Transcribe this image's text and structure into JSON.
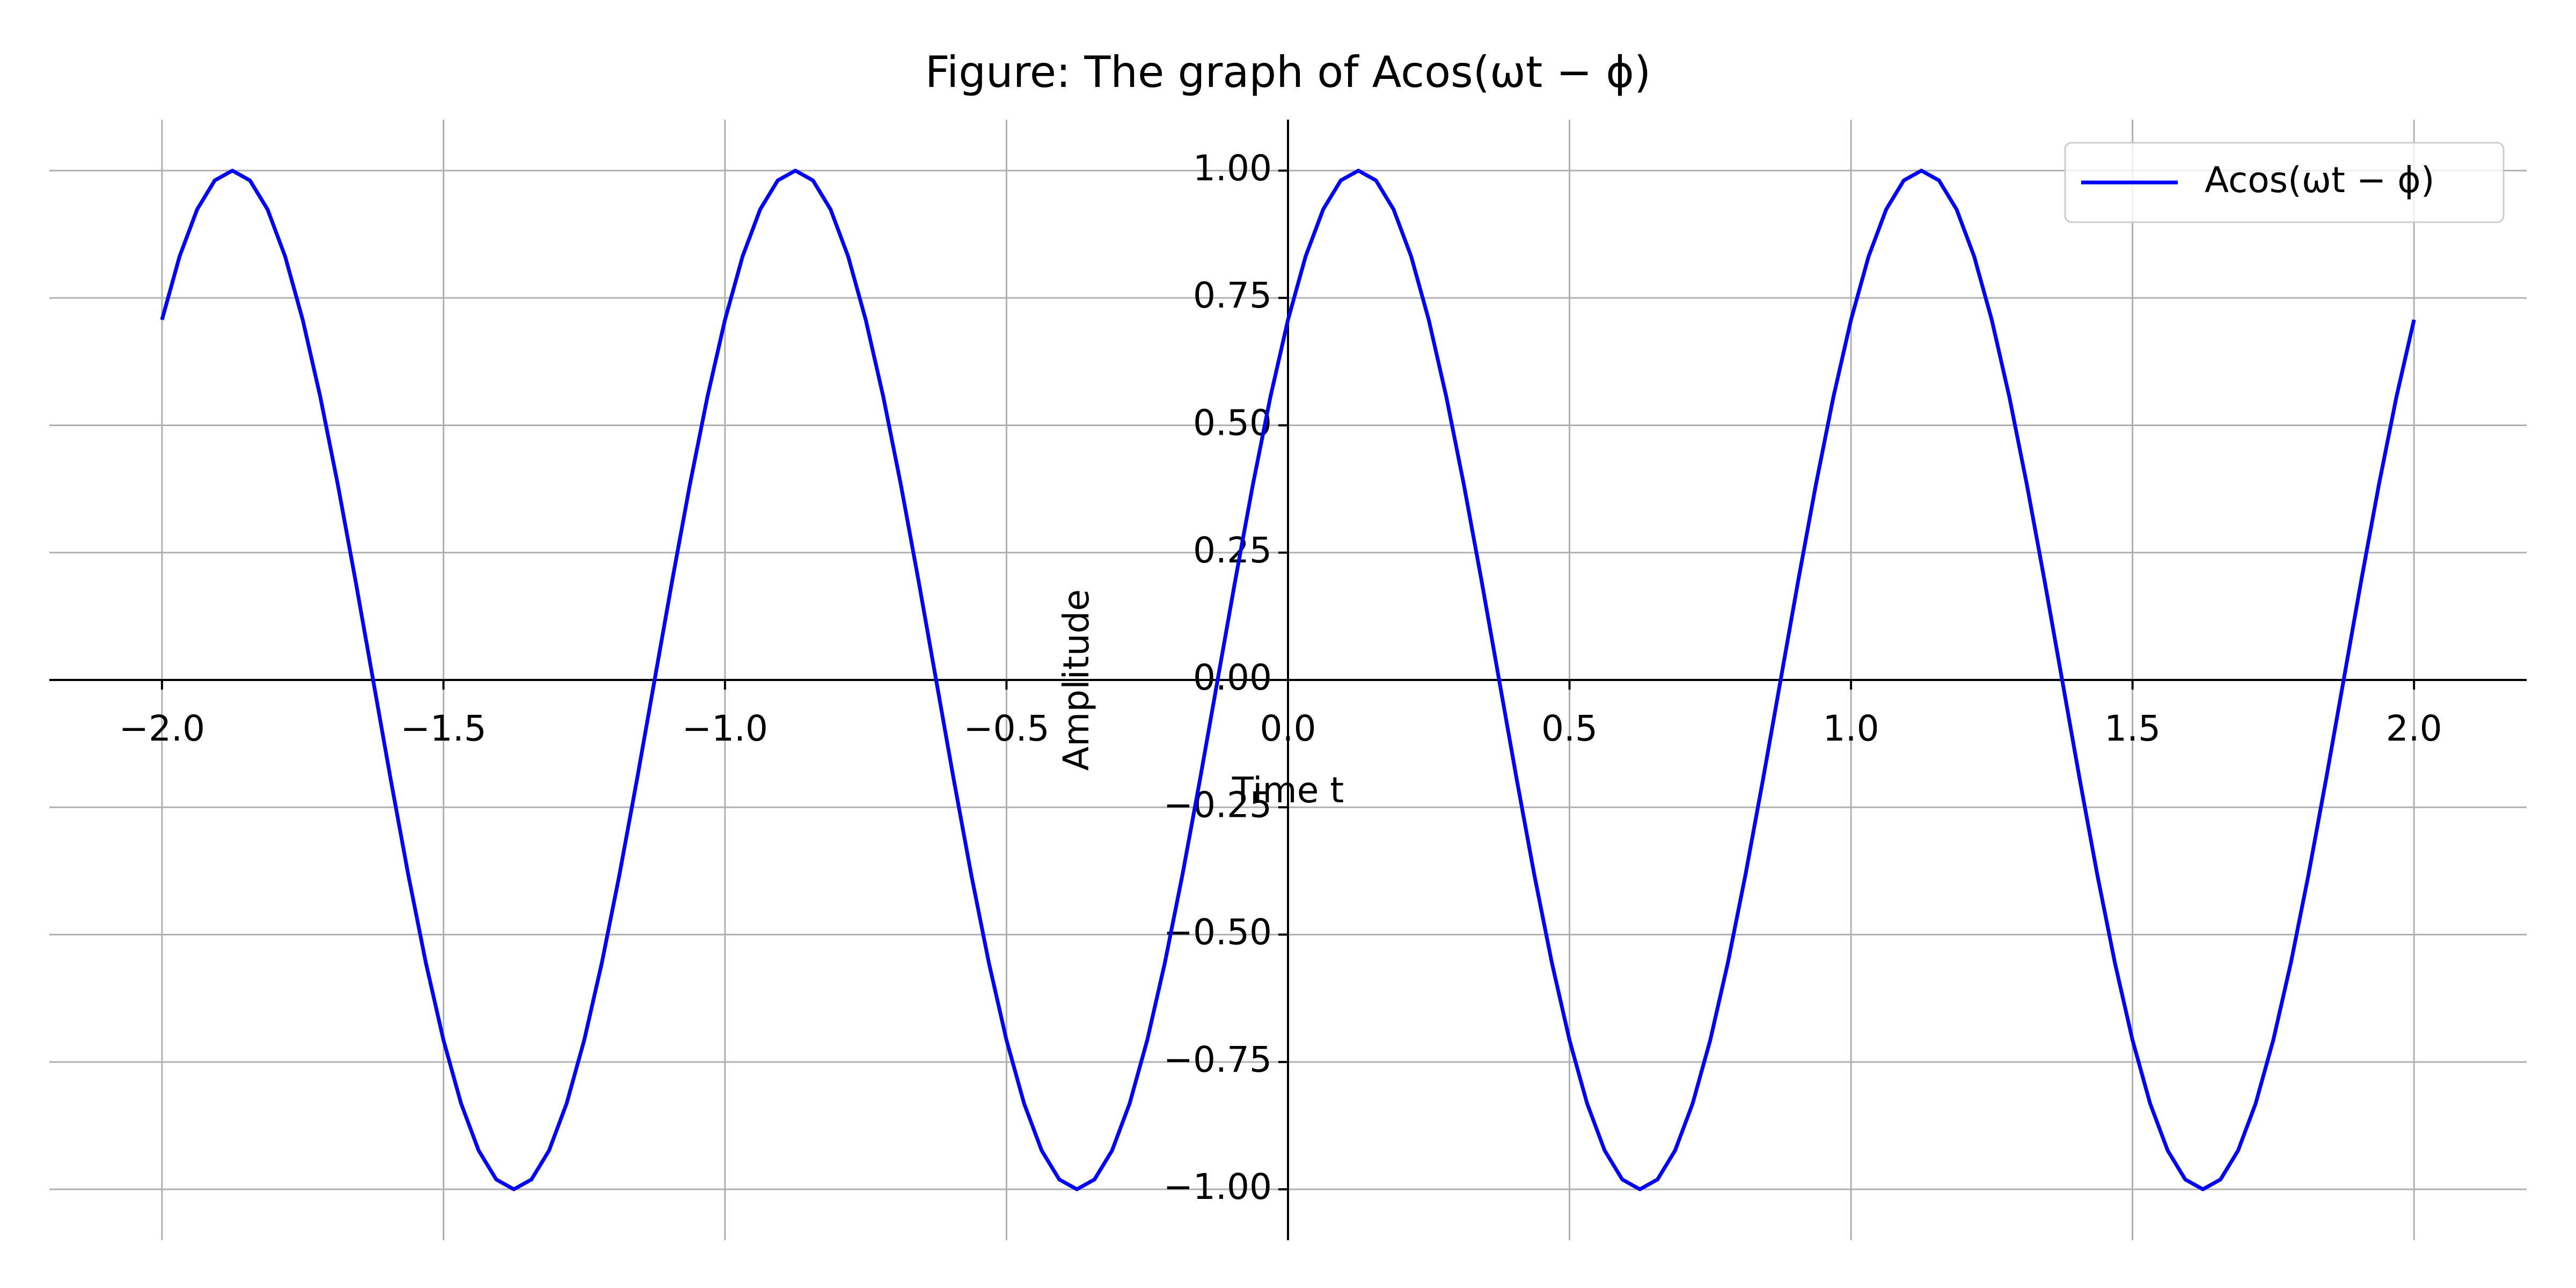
{
  "chart_data": {
    "type": "line",
    "title": "Figure: The graph of Acos(ωt − ϕ)",
    "x_label": "Time t",
    "y_label": "Amplitude",
    "legend": "upper right",
    "grid": true,
    "xlim": [
      -2.2,
      2.2
    ],
    "ylim": [
      -1.1,
      1.1
    ],
    "xticks": [
      {
        "value": -2,
        "label": "−2.0"
      },
      {
        "value": -1.5,
        "label": "−1.5"
      },
      {
        "value": -1,
        "label": "−1.0"
      },
      {
        "value": -0.5,
        "label": "−0.5"
      },
      {
        "value": 0,
        "label": "0.0"
      },
      {
        "value": 0.5,
        "label": "0.5"
      },
      {
        "value": 1,
        "label": "1.0"
      },
      {
        "value": 1.5,
        "label": "1.5"
      },
      {
        "value": 2,
        "label": "2.0"
      }
    ],
    "yticks": [
      {
        "value": 1,
        "label": "1.00"
      },
      {
        "value": 0.75,
        "label": "0.75"
      },
      {
        "value": 0.5,
        "label": "0.50"
      },
      {
        "value": 0.25,
        "label": "0.25"
      },
      {
        "value": 0,
        "label": "0.00"
      },
      {
        "value": -0.25,
        "label": "−0.25"
      },
      {
        "value": -0.5,
        "label": "−0.50"
      },
      {
        "value": -0.75,
        "label": "−0.75"
      },
      {
        "value": -1,
        "label": "−1.00"
      }
    ],
    "x": [
      -2,
      -1.96875,
      -1.9375,
      -1.90625,
      -1.875,
      -1.84375,
      -1.8125,
      -1.78125,
      -1.75,
      -1.71875,
      -1.6875,
      -1.65625,
      -1.625,
      -1.59375,
      -1.5625,
      -1.53125,
      -1.5,
      -1.46875,
      -1.4375,
      -1.40625,
      -1.375,
      -1.34375,
      -1.3125,
      -1.28125,
      -1.25,
      -1.21875,
      -1.1875,
      -1.15625,
      -1.125,
      -1.09375,
      -1.0625,
      -1.03125,
      -1,
      -0.96875,
      -0.9375,
      -0.90625,
      -0.875,
      -0.84375,
      -0.8125,
      -0.78125,
      -0.75,
      -0.71875,
      -0.6875,
      -0.65625,
      -0.625,
      -0.59375,
      -0.5625,
      -0.53125,
      -0.5,
      -0.46875,
      -0.4375,
      -0.40625,
      -0.375,
      -0.34375,
      -0.3125,
      -0.28125,
      -0.25,
      -0.21875,
      -0.1875,
      -0.15625,
      -0.125,
      -0.09375,
      -0.0625,
      -0.03125,
      0,
      0.03125,
      0.0625,
      0.09375,
      0.125,
      0.15625,
      0.1875,
      0.21875,
      0.25,
      0.28125,
      0.3125,
      0.34375,
      0.375,
      0.40625,
      0.4375,
      0.46875,
      0.5,
      0.53125,
      0.5625,
      0.59375,
      0.625,
      0.65625,
      0.6875,
      0.71875,
      0.75,
      0.78125,
      0.8125,
      0.84375,
      0.875,
      0.90625,
      0.9375,
      0.96875,
      1,
      1.03125,
      1.0625,
      1.09375,
      1.125,
      1.15625,
      1.1875,
      1.21875,
      1.25,
      1.28125,
      1.3125,
      1.34375,
      1.375,
      1.40625,
      1.4375,
      1.46875,
      1.5,
      1.53125,
      1.5625,
      1.59375,
      1.625,
      1.65625,
      1.6875,
      1.71875,
      1.75,
      1.78125,
      1.8125,
      1.84375,
      1.875,
      1.90625,
      1.9375,
      1.96875,
      2
    ],
    "series": [
      {
        "name": "Acos(ωt − ϕ)",
        "color": "#0000ff",
        "values": [
          0.7071,
          0.8315,
          0.9239,
          0.9808,
          1,
          0.9808,
          0.9239,
          0.8315,
          0.7071,
          0.5556,
          0.3827,
          0.1951,
          0,
          -0.1951,
          -0.3827,
          -0.5556,
          -0.7071,
          -0.8315,
          -0.9239,
          -0.9808,
          -1,
          -0.9808,
          -0.9239,
          -0.8315,
          -0.7071,
          -0.5556,
          -0.3827,
          -0.1951,
          0,
          0.1951,
          0.3827,
          0.5556,
          0.7071,
          0.8315,
          0.9239,
          0.9808,
          1,
          0.9808,
          0.9239,
          0.8315,
          0.7071,
          0.5556,
          0.3827,
          0.1951,
          0,
          -0.1951,
          -0.3827,
          -0.5556,
          -0.7071,
          -0.8315,
          -0.9239,
          -0.9808,
          -1,
          -0.9808,
          -0.9239,
          -0.8315,
          -0.7071,
          -0.5556,
          -0.3827,
          -0.1951,
          0,
          0.1951,
          0.3827,
          0.5556,
          0.7071,
          0.8315,
          0.9239,
          0.9808,
          1,
          0.9808,
          0.9239,
          0.8315,
          0.7071,
          0.5556,
          0.3827,
          0.1951,
          0,
          -0.1951,
          -0.3827,
          -0.5556,
          -0.7071,
          -0.8315,
          -0.9239,
          -0.9808,
          -1,
          -0.9808,
          -0.9239,
          -0.8315,
          -0.7071,
          -0.5556,
          -0.3827,
          -0.1951,
          0,
          0.1951,
          0.3827,
          0.5556,
          0.7071,
          0.8315,
          0.9239,
          0.9808,
          1,
          0.9808,
          0.9239,
          0.8315,
          0.7071,
          0.5556,
          0.3827,
          0.1951,
          0,
          -0.1951,
          -0.3827,
          -0.5556,
          -0.7071,
          -0.8315,
          -0.9239,
          -0.9808,
          -1,
          -0.9808,
          -0.9239,
          -0.8315,
          -0.7071,
          -0.5556,
          -0.3827,
          -0.1951,
          0,
          0.1951,
          0.3827,
          0.5556,
          0.7071
        ]
      }
    ]
  }
}
